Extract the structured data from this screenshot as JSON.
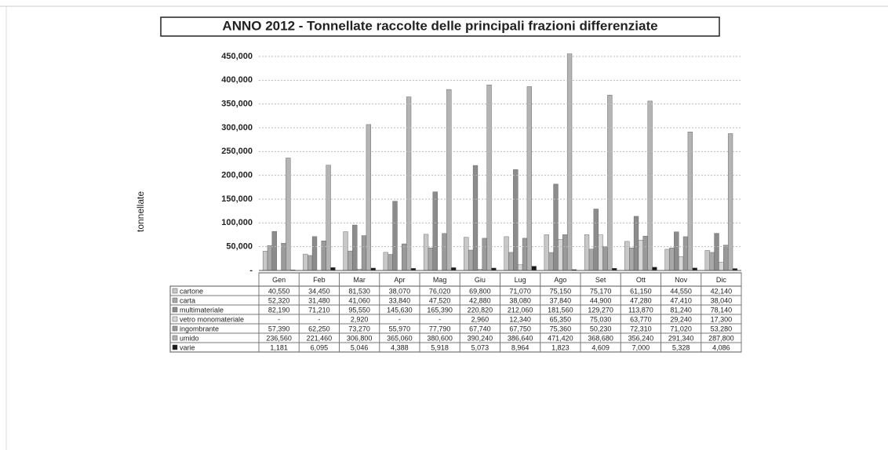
{
  "chart_data": {
    "type": "bar",
    "title": "ANNO 2012 - Tonnellate raccolte delle principali frazioni differenziate",
    "y_label": "tonnellate",
    "categories": [
      "Gen",
      "Feb",
      "Mar",
      "Apr",
      "Mag",
      "Giu",
      "Lug",
      "Ago",
      "Set",
      "Ott",
      "Nov",
      "Dic"
    ],
    "ylim": [
      0,
      450
    ],
    "yticks": [
      {
        "value": 0,
        "label": "-"
      },
      {
        "value": 50,
        "label": "50,000"
      },
      {
        "value": 100,
        "label": "100,000"
      },
      {
        "value": 150,
        "label": "150,000"
      },
      {
        "value": 200,
        "label": "200,000"
      },
      {
        "value": 250,
        "label": "250,000"
      },
      {
        "value": 300,
        "label": "300,000"
      },
      {
        "value": 350,
        "label": "350,000"
      },
      {
        "value": 400,
        "label": "400,000"
      },
      {
        "value": 450,
        "label": "450,000"
      }
    ],
    "grid": true,
    "series": [
      {
        "name": "cartone",
        "color": "#c8c8c8",
        "values": [
          40.55,
          34.45,
          81.53,
          38.07,
          76.02,
          69.8,
          71.07,
          75.15,
          75.17,
          61.15,
          44.55,
          42.14
        ],
        "value_labels": [
          "40,550",
          "34,450",
          "81,530",
          "38,070",
          "76,020",
          "69,800",
          "71,070",
          "75,150",
          "75,170",
          "61,150",
          "44,550",
          "42,140"
        ]
      },
      {
        "name": "carta",
        "color": "#a8a8a8",
        "values": [
          52.32,
          31.48,
          41.06,
          33.84,
          47.52,
          42.88,
          38.08,
          37.84,
          44.9,
          47.28,
          47.41,
          38.04
        ],
        "value_labels": [
          "52,320",
          "31,480",
          "41,060",
          "33,840",
          "47,520",
          "42,880",
          "38,080",
          "37,840",
          "44,900",
          "47,280",
          "47,410",
          "38,040"
        ]
      },
      {
        "name": "multimateriale",
        "color": "#8c8c8c",
        "values": [
          82.19,
          71.21,
          95.55,
          145.63,
          165.39,
          220.82,
          212.06,
          181.56,
          129.27,
          113.87,
          81.24,
          78.14
        ],
        "value_labels": [
          "82,190",
          "71,210",
          "95,550",
          "145,630",
          "165,390",
          "220,820",
          "212,060",
          "181,560",
          "129,270",
          "113,870",
          "81,240",
          "78,140"
        ]
      },
      {
        "name": "vetro monomateriale",
        "color": "#d8d8d8",
        "values": [
          null,
          null,
          2.92,
          null,
          null,
          2.96,
          12.34,
          65.35,
          75.03,
          63.77,
          29.24,
          17.3
        ],
        "value_labels": [
          "-",
          "-",
          "2,920",
          "-",
          "-",
          "2,960",
          "12,340",
          "65,350",
          "75,030",
          "63,770",
          "29,240",
          "17,300"
        ]
      },
      {
        "name": "ingombrante",
        "color": "#9a9a9a",
        "values": [
          57.39,
          62.25,
          73.27,
          55.97,
          77.79,
          67.74,
          67.75,
          75.36,
          50.23,
          72.31,
          71.02,
          53.28
        ],
        "value_labels": [
          "57,390",
          "62,250",
          "73,270",
          "55,970",
          "77,790",
          "67,740",
          "67,750",
          "75,360",
          "50,230",
          "72,310",
          "71,020",
          "53,280"
        ]
      },
      {
        "name": "umido",
        "color": "#b4b4b4",
        "values": [
          236.56,
          221.46,
          306.8,
          365.06,
          380.6,
          390.24,
          386.64,
          471.42,
          368.68,
          356.24,
          291.34,
          287.8
        ],
        "value_labels": [
          "236,560",
          "221,460",
          "306,800",
          "365,060",
          "380,600",
          "390,240",
          "386,640",
          "471,420",
          "368,680",
          "356,240",
          "291,340",
          "287,800"
        ]
      },
      {
        "name": "varie",
        "color": "#1a1a1a",
        "values": [
          1.181,
          6.095,
          5.046,
          4.388,
          5.918,
          5.073,
          8.964,
          1.823,
          4.609,
          7.0,
          5.328,
          4.086
        ],
        "value_labels": [
          "1,181",
          "6,095",
          "5,046",
          "4,388",
          "5,918",
          "5,073",
          "8,964",
          "1,823",
          "4,609",
          "7,000",
          "5,328",
          "4,086"
        ]
      }
    ]
  }
}
